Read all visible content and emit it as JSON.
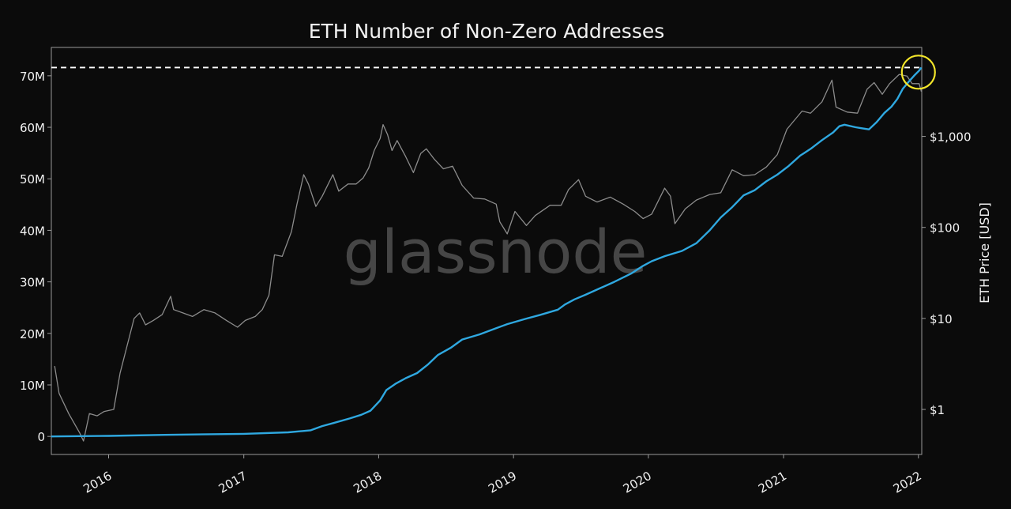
{
  "chart_data": {
    "type": "line",
    "title": "ETH Number of Non-Zero Addresses",
    "watermark": "glassnode",
    "background_color": "#0b0b0b",
    "grid": false,
    "legend": "none",
    "x_axis": {
      "type": "date",
      "range": [
        "2015-07-30",
        "2022-01-10"
      ],
      "ticks": [
        "2016-01-01",
        "2017-01-01",
        "2018-01-01",
        "2019-01-01",
        "2020-01-01",
        "2021-01-01",
        "2022-01-01"
      ],
      "tick_labels": [
        "2016",
        "2017",
        "2018",
        "2019",
        "2020",
        "2021",
        "2022"
      ]
    },
    "y_left": {
      "label": "",
      "range": [
        -3500000,
        75500000
      ],
      "ticks": [
        0,
        10000000,
        20000000,
        30000000,
        40000000,
        50000000,
        60000000,
        70000000
      ],
      "tick_labels": [
        "0",
        "10M",
        "20M",
        "30M",
        "40M",
        "50M",
        "60M",
        "70M"
      ]
    },
    "y_right": {
      "label": "ETH Price [USD]",
      "scale": "log",
      "range": [
        0.32,
        9500
      ],
      "ticks": [
        1,
        10,
        100,
        1000
      ],
      "tick_labels": [
        "$1",
        "$10",
        "$100",
        "$1,000"
      ]
    },
    "series": [
      {
        "axis": "left",
        "color": "#2fa8e0",
        "points": [
          [
            "2015-07-30",
            0
          ],
          [
            "2016-01-01",
            100000
          ],
          [
            "2016-06-01",
            300000
          ],
          [
            "2017-01-01",
            500000
          ],
          [
            "2017-05-01",
            800000
          ],
          [
            "2017-07-01",
            1200000
          ],
          [
            "2017-08-01",
            2000000
          ],
          [
            "2017-09-01",
            2600000
          ],
          [
            "2017-10-15",
            3500000
          ],
          [
            "2017-11-15",
            4200000
          ],
          [
            "2017-12-10",
            5000000
          ],
          [
            "2018-01-05",
            7000000
          ],
          [
            "2018-01-22",
            9000000
          ],
          [
            "2018-02-15",
            10200000
          ],
          [
            "2018-03-15",
            11300000
          ],
          [
            "2018-04-15",
            12300000
          ],
          [
            "2018-05-15",
            14000000
          ],
          [
            "2018-06-10",
            15800000
          ],
          [
            "2018-07-15",
            17200000
          ],
          [
            "2018-08-15",
            18800000
          ],
          [
            "2018-10-01",
            19800000
          ],
          [
            "2018-11-15",
            21000000
          ],
          [
            "2018-12-15",
            21800000
          ],
          [
            "2019-02-01",
            22800000
          ],
          [
            "2019-03-15",
            23600000
          ],
          [
            "2019-05-01",
            24600000
          ],
          [
            "2019-05-20",
            25600000
          ],
          [
            "2019-06-15",
            26600000
          ],
          [
            "2019-07-15",
            27500000
          ],
          [
            "2019-08-15",
            28500000
          ],
          [
            "2019-10-01",
            30000000
          ],
          [
            "2019-11-15",
            31600000
          ],
          [
            "2019-12-15",
            33000000
          ],
          [
            "2020-01-10",
            34000000
          ],
          [
            "2020-02-15",
            35000000
          ],
          [
            "2020-04-01",
            36000000
          ],
          [
            "2020-05-10",
            37500000
          ],
          [
            "2020-06-15",
            40000000
          ],
          [
            "2020-07-15",
            42500000
          ],
          [
            "2020-08-15",
            44500000
          ],
          [
            "2020-09-15",
            46800000
          ],
          [
            "2020-10-15",
            47800000
          ],
          [
            "2020-11-15",
            49500000
          ],
          [
            "2020-12-15",
            50800000
          ],
          [
            "2021-01-15",
            52500000
          ],
          [
            "2021-02-15",
            54500000
          ],
          [
            "2021-03-15",
            55800000
          ],
          [
            "2021-04-15",
            57500000
          ],
          [
            "2021-05-15",
            59000000
          ],
          [
            "2021-06-01",
            60200000
          ],
          [
            "2021-06-15",
            60500000
          ],
          [
            "2021-07-15",
            60000000
          ],
          [
            "2021-08-01",
            59800000
          ],
          [
            "2021-08-20",
            59600000
          ],
          [
            "2021-09-10",
            61000000
          ],
          [
            "2021-10-01",
            62800000
          ],
          [
            "2021-10-20",
            64000000
          ],
          [
            "2021-11-05",
            65500000
          ],
          [
            "2021-11-20",
            67500000
          ],
          [
            "2021-12-05",
            68800000
          ],
          [
            "2021-12-20",
            70000000
          ],
          [
            "2022-01-03",
            71000000
          ],
          [
            "2022-01-09",
            71600000
          ]
        ]
      },
      {
        "axis": "right",
        "color": "#8c8c8c",
        "points": [
          [
            "2015-08-08",
            3.0
          ],
          [
            "2015-08-20",
            1.5
          ],
          [
            "2015-09-15",
            0.9
          ],
          [
            "2015-10-15",
            0.55
          ],
          [
            "2015-10-25",
            0.45
          ],
          [
            "2015-11-10",
            0.9
          ],
          [
            "2015-12-01",
            0.85
          ],
          [
            "2015-12-20",
            0.95
          ],
          [
            "2016-01-15",
            1.0
          ],
          [
            "2016-02-01",
            2.5
          ],
          [
            "2016-02-20",
            5.0
          ],
          [
            "2016-03-10",
            10.0
          ],
          [
            "2016-03-25",
            11.5
          ],
          [
            "2016-04-10",
            8.5
          ],
          [
            "2016-05-01",
            9.5
          ],
          [
            "2016-05-25",
            11.0
          ],
          [
            "2016-06-17",
            17.5
          ],
          [
            "2016-06-25",
            12.5
          ],
          [
            "2016-07-20",
            11.5
          ],
          [
            "2016-08-15",
            10.5
          ],
          [
            "2016-09-15",
            12.5
          ],
          [
            "2016-10-15",
            11.5
          ],
          [
            "2016-11-15",
            9.5
          ],
          [
            "2016-12-15",
            8.0
          ],
          [
            "2017-01-05",
            9.5
          ],
          [
            "2017-02-01",
            10.5
          ],
          [
            "2017-02-20",
            12.5
          ],
          [
            "2017-03-10",
            18.0
          ],
          [
            "2017-03-25",
            50.0
          ],
          [
            "2017-04-15",
            48.0
          ],
          [
            "2017-05-10",
            90.0
          ],
          [
            "2017-05-25",
            180.0
          ],
          [
            "2017-06-12",
            380.0
          ],
          [
            "2017-06-25",
            300.0
          ],
          [
            "2017-07-15",
            170.0
          ],
          [
            "2017-08-01",
            220.0
          ],
          [
            "2017-08-30",
            380.0
          ],
          [
            "2017-09-15",
            250.0
          ],
          [
            "2017-10-10",
            300.0
          ],
          [
            "2017-11-01",
            300.0
          ],
          [
            "2017-11-20",
            350.0
          ],
          [
            "2017-12-05",
            450.0
          ],
          [
            "2017-12-20",
            700.0
          ],
          [
            "2018-01-05",
            950.0
          ],
          [
            "2018-01-13",
            1350.0
          ],
          [
            "2018-01-25",
            1050.0
          ],
          [
            "2018-02-06",
            700.0
          ],
          [
            "2018-02-20",
            900.0
          ],
          [
            "2018-03-15",
            600.0
          ],
          [
            "2018-04-05",
            400.0
          ],
          [
            "2018-04-25",
            650.0
          ],
          [
            "2018-05-10",
            730.0
          ],
          [
            "2018-06-01",
            560.0
          ],
          [
            "2018-06-25",
            440.0
          ],
          [
            "2018-07-20",
            470.0
          ],
          [
            "2018-08-15",
            290.0
          ],
          [
            "2018-09-15",
            210.0
          ],
          [
            "2018-10-15",
            205.0
          ],
          [
            "2018-11-15",
            180.0
          ],
          [
            "2018-11-25",
            115.0
          ],
          [
            "2018-12-15",
            85.0
          ],
          [
            "2019-01-05",
            150.0
          ],
          [
            "2019-02-05",
            105.0
          ],
          [
            "2019-03-01",
            135.0
          ],
          [
            "2019-04-10",
            175.0
          ],
          [
            "2019-05-10",
            175.0
          ],
          [
            "2019-05-30",
            260.0
          ],
          [
            "2019-06-26",
            335.0
          ],
          [
            "2019-07-15",
            220.0
          ],
          [
            "2019-08-15",
            190.0
          ],
          [
            "2019-09-20",
            215.0
          ],
          [
            "2019-10-25",
            180.0
          ],
          [
            "2019-11-25",
            150.0
          ],
          [
            "2019-12-18",
            125.0
          ],
          [
            "2020-01-10",
            140.0
          ],
          [
            "2020-02-14",
            270.0
          ],
          [
            "2020-03-01",
            220.0
          ],
          [
            "2020-03-13",
            110.0
          ],
          [
            "2020-04-10",
            160.0
          ],
          [
            "2020-05-10",
            200.0
          ],
          [
            "2020-06-15",
            230.0
          ],
          [
            "2020-07-15",
            240.0
          ],
          [
            "2020-08-15",
            430.0
          ],
          [
            "2020-09-15",
            370.0
          ],
          [
            "2020-10-15",
            380.0
          ],
          [
            "2020-11-15",
            460.0
          ],
          [
            "2020-12-15",
            630.0
          ],
          [
            "2021-01-10",
            1200.0
          ],
          [
            "2021-02-20",
            1900.0
          ],
          [
            "2021-03-15",
            1800.0
          ],
          [
            "2021-04-15",
            2400.0
          ],
          [
            "2021-05-12",
            4150.0
          ],
          [
            "2021-05-23",
            2100.0
          ],
          [
            "2021-06-22",
            1850.0
          ],
          [
            "2021-07-20",
            1800.0
          ],
          [
            "2021-08-15",
            3300.0
          ],
          [
            "2021-09-03",
            3900.0
          ],
          [
            "2021-09-25",
            2900.0
          ],
          [
            "2021-10-15",
            3800.0
          ],
          [
            "2021-11-10",
            4800.0
          ],
          [
            "2021-12-01",
            4600.0
          ],
          [
            "2021-12-15",
            3800.0
          ],
          [
            "2022-01-03",
            3800.0
          ],
          [
            "2022-01-09",
            3100.0
          ]
        ]
      }
    ],
    "annotations": {
      "ath_dashed_line_value": 71600000,
      "highlight_circle": {
        "x": "2022-01-01",
        "y": 71000000,
        "color": "#f2e52a"
      }
    }
  }
}
